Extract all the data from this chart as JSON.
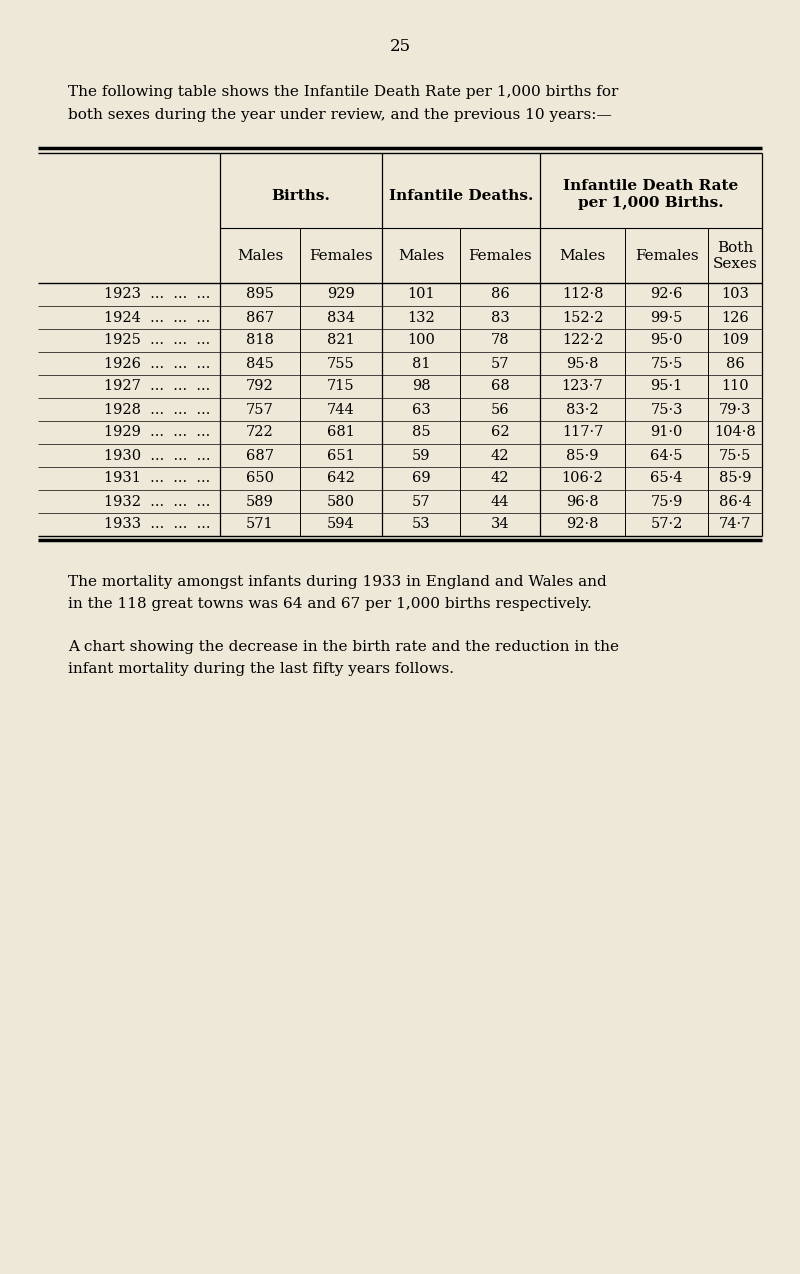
{
  "page_number": "25",
  "intro_line1": "The following table shows the Infantile Death Rate per 1,000 births for",
  "intro_line2": "both sexes during the year under review, and the previous 10 years:—",
  "col_header_group1": "Births.",
  "col_header_group2": "Infantile Deaths.",
  "col_header_group3_line1": "Infantile Death Rate",
  "col_header_group3_line2": "per 1,000 Births.",
  "sub_headers": [
    "Males",
    "Females",
    "Males",
    "Females",
    "Males",
    "Females",
    "Both\nSexes"
  ],
  "years": [
    1923,
    1924,
    1925,
    1926,
    1927,
    1928,
    1929,
    1930,
    1931,
    1932,
    1933
  ],
  "births_males": [
    895,
    867,
    818,
    845,
    792,
    757,
    722,
    687,
    650,
    589,
    571
  ],
  "births_females": [
    929,
    834,
    821,
    755,
    715,
    744,
    681,
    651,
    642,
    580,
    594
  ],
  "deaths_males": [
    101,
    132,
    100,
    81,
    98,
    63,
    85,
    59,
    69,
    57,
    53
  ],
  "deaths_females": [
    86,
    83,
    78,
    57,
    68,
    56,
    62,
    42,
    42,
    44,
    34
  ],
  "rate_males": [
    "112·8",
    "152·2",
    "122·2",
    "95·8",
    "123·7",
    "83·2",
    "117·7",
    "85·9",
    "106·2",
    "96·8",
    "92·8"
  ],
  "rate_females": [
    "92·6",
    "99·5",
    "95·0",
    "75·5",
    "95·1",
    "75·3",
    "91·0",
    "64·5",
    "65·4",
    "75·9",
    "57·2"
  ],
  "rate_both": [
    "103",
    "126",
    "109",
    "86",
    "110",
    "79·3",
    "104·8",
    "75·5",
    "85·9",
    "86·4",
    "74·7"
  ],
  "footer_text1_line1": "The mortality amongst infants during 1933 in England and Wales and",
  "footer_text1_line2": "in the 118 great towns was 64 and 67 per 1,000 births respectively.",
  "footer_text2_line1": "A chart showing the decrease in the birth rate and the reduction in the",
  "footer_text2_line2": "infant mortality during the last fifty years follows.",
  "bg_color": "#ede8d8"
}
